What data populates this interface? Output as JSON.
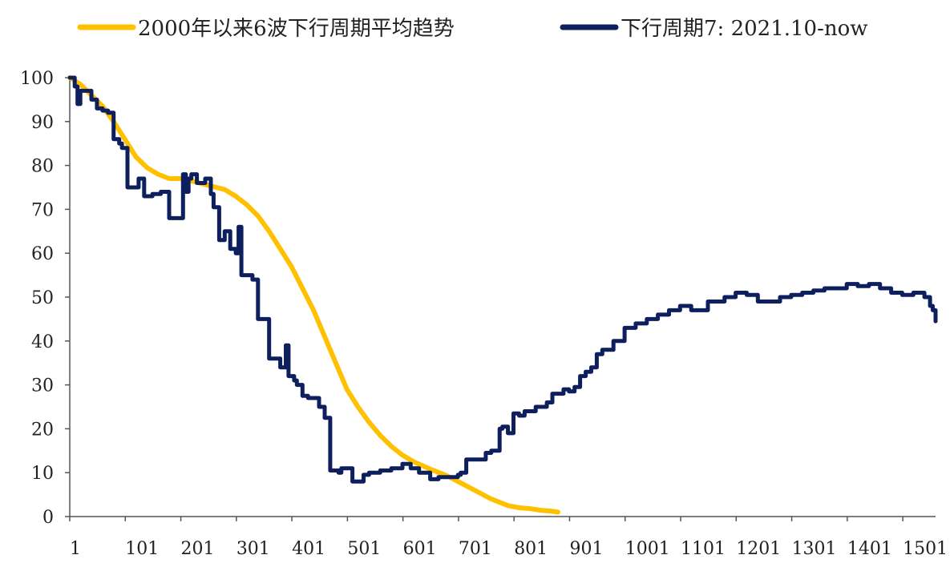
{
  "chart_data": {
    "type": "line",
    "title": "",
    "xlabel": "",
    "ylabel": "",
    "xlim": [
      1,
      1560
    ],
    "ylim": [
      0,
      100
    ],
    "yticks": [
      0,
      10,
      20,
      30,
      40,
      50,
      60,
      70,
      80,
      90,
      100
    ],
    "xticks": [
      1,
      101,
      201,
      301,
      401,
      501,
      601,
      701,
      801,
      901,
      1001,
      1101,
      1201,
      1301,
      1401,
      1501
    ],
    "xtick_labels": [
      "1",
      "101",
      "201",
      "301",
      "401",
      "501",
      "601",
      "701",
      "801",
      "901",
      "1001",
      "1101",
      "1201",
      "1301",
      "1401",
      "1501"
    ],
    "grid": false,
    "legend_position": "top",
    "series": [
      {
        "name": "2000年以来6波下行周期平均趋势",
        "color": "#FFC000",
        "x": [
          1,
          20,
          40,
          60,
          80,
          100,
          120,
          140,
          160,
          180,
          200,
          220,
          250,
          280,
          300,
          320,
          340,
          360,
          380,
          400,
          420,
          440,
          460,
          480,
          500,
          520,
          540,
          560,
          580,
          600,
          620,
          650,
          680,
          700,
          730,
          760,
          790,
          810,
          830,
          850,
          870,
          880
        ],
        "y": [
          100,
          98.5,
          96,
          93.5,
          90,
          86,
          82,
          79.5,
          78,
          77,
          77,
          76.5,
          75.5,
          74.5,
          73,
          71,
          68.5,
          65,
          61,
          57,
          52,
          47,
          41,
          35,
          29,
          25,
          21.5,
          18.5,
          16,
          14,
          12.5,
          10.8,
          9.3,
          8,
          6,
          4,
          2.5,
          2,
          1.8,
          1.4,
          1.2,
          1
        ]
      },
      {
        "name": "下行周期7: 2021.10-now",
        "color": "#0D1F5C",
        "x": [
          1,
          10,
          15,
          20,
          40,
          50,
          60,
          70,
          80,
          90,
          95,
          100,
          105,
          110,
          125,
          135,
          150,
          165,
          180,
          190,
          200,
          205,
          210,
          215,
          220,
          230,
          245,
          255,
          260,
          270,
          280,
          290,
          300,
          305,
          310,
          320,
          330,
          340,
          350,
          360,
          370,
          380,
          390,
          395,
          400,
          405,
          410,
          420,
          430,
          440,
          450,
          460,
          470,
          480,
          485,
          490,
          500,
          510,
          520,
          530,
          540,
          560,
          580,
          600,
          615,
          630,
          650,
          665,
          680,
          700,
          705,
          715,
          730,
          750,
          760,
          775,
          780,
          790,
          800,
          810,
          820,
          840,
          860,
          870,
          880,
          890,
          900,
          910,
          920,
          930,
          940,
          950,
          960,
          980,
          1000,
          1020,
          1040,
          1060,
          1080,
          1100,
          1120,
          1150,
          1180,
          1200,
          1220,
          1240,
          1260,
          1280,
          1300,
          1320,
          1340,
          1360,
          1380,
          1400,
          1420,
          1440,
          1460,
          1480,
          1500,
          1520,
          1540,
          1550,
          1555,
          1560
        ],
        "y": [
          100,
          98,
          94,
          97,
          95,
          93,
          92.5,
          92,
          86,
          85,
          84,
          84,
          75,
          75,
          77,
          73,
          73.5,
          74,
          68,
          68,
          68,
          78,
          74,
          77,
          78,
          76,
          77,
          73.5,
          70.5,
          63,
          65,
          61,
          60,
          66,
          55,
          55,
          54,
          45,
          45,
          36,
          36,
          34,
          39,
          32,
          32,
          31,
          30,
          27.5,
          27,
          27,
          25,
          22.5,
          10.5,
          10.5,
          10,
          11,
          11,
          8,
          8,
          9.5,
          10,
          10.5,
          11,
          12,
          11,
          10,
          8.5,
          9,
          9,
          9.5,
          10,
          13,
          13,
          14.5,
          15,
          20,
          20.5,
          19,
          23.5,
          23,
          24,
          25,
          26,
          28,
          28,
          29,
          28.5,
          29.5,
          32,
          33,
          34,
          37,
          38,
          40,
          43,
          44,
          45,
          46,
          47,
          48,
          47,
          49,
          50,
          51,
          50.5,
          49,
          49,
          50,
          50.5,
          51,
          51.5,
          52,
          52,
          53,
          52.5,
          53,
          52,
          51,
          50.5,
          51,
          50,
          48,
          47,
          44.5
        ]
      }
    ]
  }
}
